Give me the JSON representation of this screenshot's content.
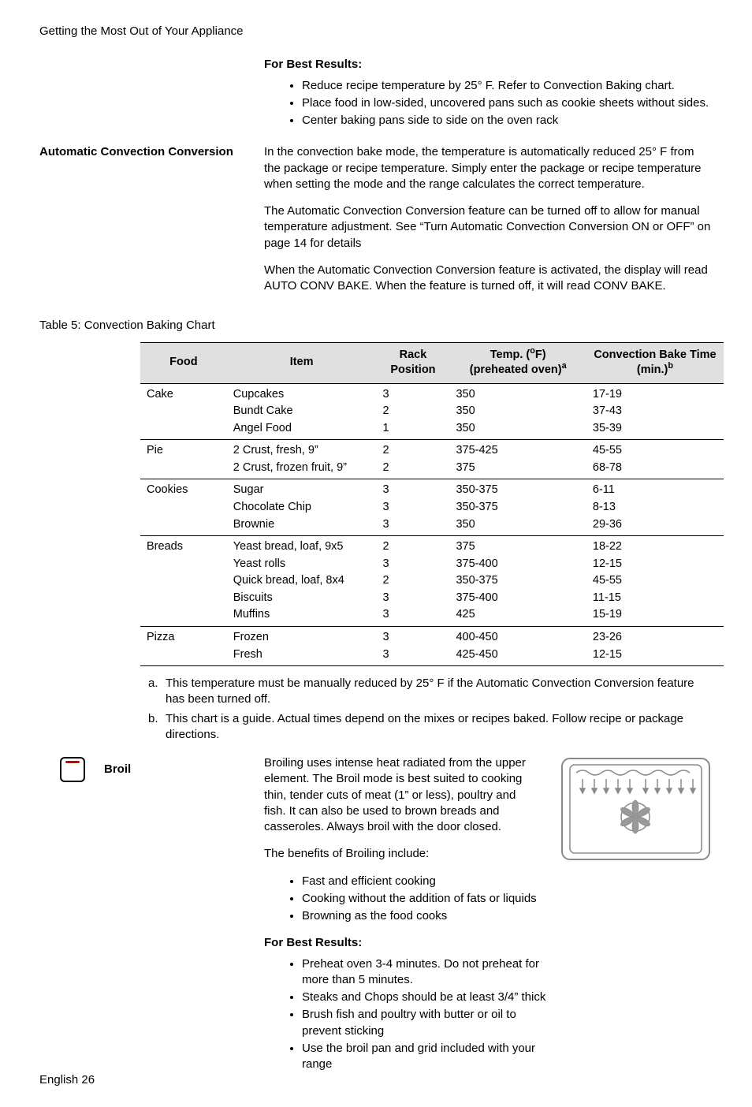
{
  "page": {
    "header": "Getting the Most Out of Your Appliance",
    "footer": "English 26"
  },
  "for_best_results_1": {
    "title": "For Best Results:",
    "items": [
      "Reduce recipe temperature by 25° F. Refer to Convection Baking chart.",
      "Place food in low-sided, uncovered pans such as cookie sheets without sides.",
      "Center baking pans side to side on the oven rack"
    ]
  },
  "auto_conv": {
    "label": "Automatic Convection Conversion",
    "p1": "In the convection bake mode, the temperature is automatically reduced 25° F from the package or recipe temperature. Simply enter the package or recipe temperature when setting the mode and the range calculates the correct temperature.",
    "p2": "The Automatic Convection Conversion feature can be turned off to allow for manual temperature adjustment. See “Turn Automatic Convection Conversion ON or OFF” on page 14 for details",
    "p3": "When the Automatic Convection Conversion feature is activated, the display will read AUTO CONV BAKE. When the feature is turned off, it will read CONV BAKE."
  },
  "baking_table": {
    "caption": "Table 5: Convection Baking Chart",
    "columns": {
      "food": "Food",
      "item": "Item",
      "rack_l1": "Rack",
      "rack_l2": "Position",
      "temp_l1": "Temp. (",
      "temp_deg": "o",
      "temp_l1b": "F)",
      "temp_l2": "(preheated oven)",
      "temp_sup": "a",
      "time_l1": "Convection Bake Time",
      "time_l2": "(min.)",
      "time_sup": "b"
    },
    "groups": [
      {
        "food": "Cake",
        "rows": [
          {
            "item": "Cupcakes",
            "rack": "3",
            "temp": "350",
            "time": "17-19"
          },
          {
            "item": "Bundt Cake",
            "rack": "2",
            "temp": "350",
            "time": "37-43"
          },
          {
            "item": "Angel Food",
            "rack": "1",
            "temp": "350",
            "time": "35-39"
          }
        ]
      },
      {
        "food": "Pie",
        "rows": [
          {
            "item": "2 Crust, fresh, 9”",
            "rack": "2",
            "temp": "375-425",
            "time": "45-55"
          },
          {
            "item": "2 Crust, frozen fruit, 9”",
            "rack": "2",
            "temp": "375",
            "time": "68-78"
          }
        ]
      },
      {
        "food": "Cookies",
        "rows": [
          {
            "item": "Sugar",
            "rack": "3",
            "temp": "350-375",
            "time": "6-11"
          },
          {
            "item": "Chocolate Chip",
            "rack": "3",
            "temp": "350-375",
            "time": "8-13"
          },
          {
            "item": "Brownie",
            "rack": "3",
            "temp": "350",
            "time": "29-36"
          }
        ]
      },
      {
        "food": "Breads",
        "rows": [
          {
            "item": "Yeast bread, loaf, 9x5",
            "rack": "2",
            "temp": "375",
            "time": "18-22"
          },
          {
            "item": "Yeast rolls",
            "rack": "3",
            "temp": "375-400",
            "time": "12-15"
          },
          {
            "item": "Quick bread, loaf, 8x4",
            "rack": "2",
            "temp": "350-375",
            "time": "45-55"
          },
          {
            "item": "Biscuits",
            "rack": "3",
            "temp": "375-400",
            "time": "11-15"
          },
          {
            "item": "Muffins",
            "rack": "3",
            "temp": "425",
            "time": "15-19"
          }
        ]
      },
      {
        "food": "Pizza",
        "rows": [
          {
            "item": "Frozen",
            "rack": "3",
            "temp": "400-450",
            "time": "23-26"
          },
          {
            "item": "Fresh",
            "rack": "3",
            "temp": "425-450",
            "time": "12-15"
          }
        ]
      }
    ],
    "footnotes": [
      {
        "tag": "a.",
        "text": "This temperature must be manually reduced by 25° F if the Automatic Convection Conversion feature has been turned off."
      },
      {
        "tag": "b.",
        "text": "This chart is a guide. Actual times depend on the mixes or recipes baked. Follow recipe or package directions."
      }
    ]
  },
  "broil": {
    "label": "Broil",
    "p1": "Broiling uses intense heat radiated from the upper element. The Broil mode is best suited to cooking thin, tender cuts of meat (1” or less), poultry and fish. It can also be used to brown breads and casseroles. Always broil with the door closed.",
    "benefits_intro": "The benefits of Broiling include:",
    "benefits": [
      "Fast and efficient cooking",
      "Cooking without the addition of fats or liquids",
      "Browning as the food cooks"
    ],
    "fbr_title": "For Best Results:",
    "fbr": [
      "Preheat oven 3-4 minutes. Do not preheat for more than 5 minutes.",
      "Steaks and Chops should be at least 3/4” thick",
      "Brush fish and poultry with butter or oil to prevent sticking",
      "Use the broil pan and grid included with your range"
    ]
  },
  "svg": {
    "oven_stroke": "#8a8a8a",
    "oven_fill": "#ffffff",
    "fan_fill": "#9a9a9a"
  }
}
